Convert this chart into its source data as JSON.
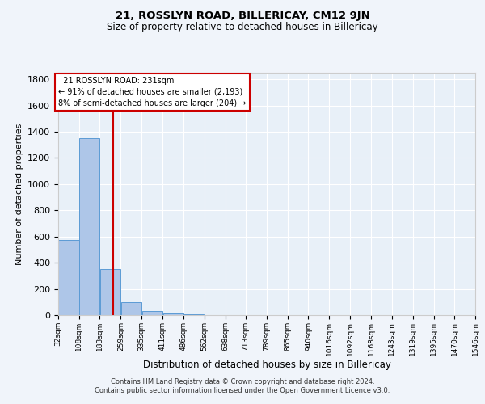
{
  "title1": "21, ROSSLYN ROAD, BILLERICAY, CM12 9JN",
  "title2": "Size of property relative to detached houses in Billericay",
  "xlabel": "Distribution of detached houses by size in Billericay",
  "ylabel": "Number of detached properties",
  "bin_labels": [
    "32sqm",
    "108sqm",
    "183sqm",
    "259sqm",
    "335sqm",
    "411sqm",
    "486sqm",
    "562sqm",
    "638sqm",
    "713sqm",
    "789sqm",
    "865sqm",
    "940sqm",
    "1016sqm",
    "1092sqm",
    "1168sqm",
    "1243sqm",
    "1319sqm",
    "1395sqm",
    "1470sqm",
    "1546sqm"
  ],
  "bin_edges": [
    32,
    108,
    183,
    259,
    335,
    411,
    486,
    562,
    638,
    713,
    789,
    865,
    940,
    1016,
    1092,
    1168,
    1243,
    1319,
    1395,
    1470,
    1546
  ],
  "bar_heights": [
    575,
    1350,
    350,
    100,
    30,
    20,
    5,
    3,
    2,
    2,
    1,
    1,
    1,
    1,
    1,
    0,
    0,
    0,
    0,
    1,
    0
  ],
  "bar_color": "#aec6e8",
  "bar_edge_color": "#5b9bd5",
  "property_size": 231,
  "property_label": "21 ROSSLYN ROAD: 231sqm",
  "pct_smaller": "91% of detached houses are smaller (2,193)",
  "pct_larger": "8% of semi-detached houses are larger (204)",
  "vline_color": "#cc0000",
  "annotation_box_color": "#cc0000",
  "ylim": [
    0,
    1850
  ],
  "yticks": [
    0,
    200,
    400,
    600,
    800,
    1000,
    1200,
    1400,
    1600,
    1800
  ],
  "background_color": "#e8f0f8",
  "grid_color": "#ffffff",
  "fig_background": "#f0f4fa",
  "footer_line1": "Contains HM Land Registry data © Crown copyright and database right 2024.",
  "footer_line2": "Contains public sector information licensed under the Open Government Licence v3.0."
}
